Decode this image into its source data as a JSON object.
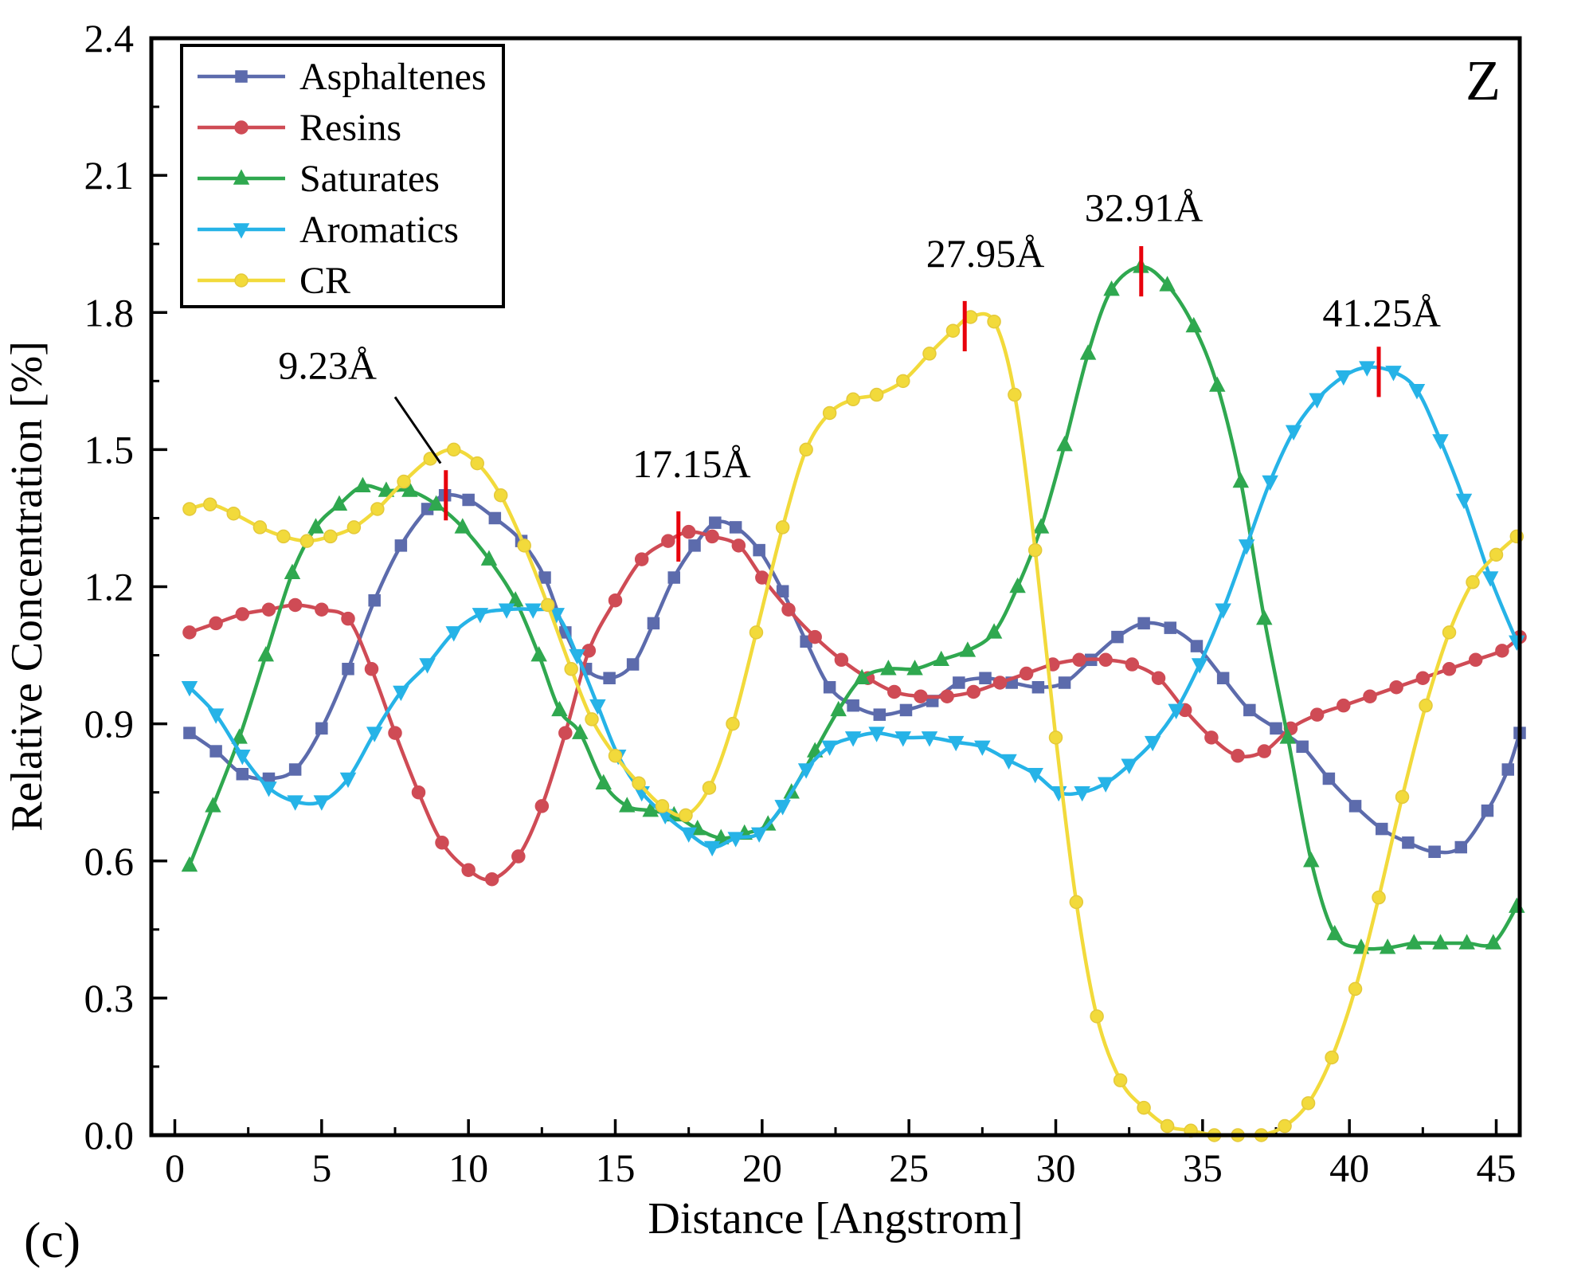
{
  "figure": {
    "panel_label": "(c)",
    "corner_label": "Z"
  },
  "chart_data": {
    "type": "line",
    "title": "",
    "xlabel": "Distance [Angstrom]",
    "ylabel": "Relative Concentration [%]",
    "xlim": [
      -0.8,
      45.8
    ],
    "ylim": [
      0,
      2.4
    ],
    "xticks": [
      0,
      5,
      10,
      15,
      20,
      25,
      30,
      35,
      40,
      45
    ],
    "yticks": [
      0.0,
      0.3,
      0.6,
      0.9,
      1.2,
      1.5,
      1.8,
      2.1,
      2.4
    ],
    "x_minor_step": 2.5,
    "y_minor_step": 0.15,
    "grid": false,
    "legend_position": "top-left",
    "annotation_color": "#e8000b",
    "series": [
      {
        "name": "Asphaltenes",
        "color": "#5c6bac",
        "marker": "square",
        "points": [
          [
            0.5,
            0.88
          ],
          [
            1.4,
            0.84
          ],
          [
            2.3,
            0.79
          ],
          [
            3.2,
            0.78
          ],
          [
            4.1,
            0.8
          ],
          [
            5.0,
            0.89
          ],
          [
            5.9,
            1.02
          ],
          [
            6.8,
            1.17
          ],
          [
            7.7,
            1.29
          ],
          [
            8.6,
            1.37
          ],
          [
            9.2,
            1.4
          ],
          [
            10.0,
            1.39
          ],
          [
            10.9,
            1.35
          ],
          [
            11.8,
            1.3
          ],
          [
            12.6,
            1.22
          ],
          [
            13.3,
            1.1
          ],
          [
            14.0,
            1.02
          ],
          [
            14.8,
            1.0
          ],
          [
            15.6,
            1.03
          ],
          [
            16.3,
            1.12
          ],
          [
            17.0,
            1.22
          ],
          [
            17.7,
            1.29
          ],
          [
            18.4,
            1.34
          ],
          [
            19.1,
            1.33
          ],
          [
            19.9,
            1.28
          ],
          [
            20.7,
            1.19
          ],
          [
            21.5,
            1.08
          ],
          [
            22.3,
            0.98
          ],
          [
            23.1,
            0.94
          ],
          [
            24.0,
            0.92
          ],
          [
            24.9,
            0.93
          ],
          [
            25.8,
            0.95
          ],
          [
            26.7,
            0.99
          ],
          [
            27.6,
            1.0
          ],
          [
            28.5,
            0.99
          ],
          [
            29.4,
            0.98
          ],
          [
            30.3,
            0.99
          ],
          [
            31.2,
            1.04
          ],
          [
            32.1,
            1.09
          ],
          [
            33.0,
            1.12
          ],
          [
            33.9,
            1.11
          ],
          [
            34.8,
            1.07
          ],
          [
            35.7,
            1.0
          ],
          [
            36.6,
            0.93
          ],
          [
            37.5,
            0.89
          ],
          [
            38.4,
            0.85
          ],
          [
            39.3,
            0.78
          ],
          [
            40.2,
            0.72
          ],
          [
            41.1,
            0.67
          ],
          [
            42.0,
            0.64
          ],
          [
            42.9,
            0.62
          ],
          [
            43.8,
            0.63
          ],
          [
            44.7,
            0.71
          ],
          [
            45.4,
            0.8
          ],
          [
            45.8,
            0.88
          ]
        ]
      },
      {
        "name": "Resins",
        "color": "#cf4b55",
        "marker": "circle",
        "points": [
          [
            0.5,
            1.1
          ],
          [
            1.4,
            1.12
          ],
          [
            2.3,
            1.14
          ],
          [
            3.2,
            1.15
          ],
          [
            4.1,
            1.16
          ],
          [
            5.0,
            1.15
          ],
          [
            5.9,
            1.13
          ],
          [
            6.7,
            1.02
          ],
          [
            7.5,
            0.88
          ],
          [
            8.3,
            0.75
          ],
          [
            9.1,
            0.64
          ],
          [
            10.0,
            0.58
          ],
          [
            10.8,
            0.56
          ],
          [
            11.7,
            0.61
          ],
          [
            12.5,
            0.72
          ],
          [
            13.3,
            0.88
          ],
          [
            14.1,
            1.06
          ],
          [
            15.0,
            1.17
          ],
          [
            15.9,
            1.26
          ],
          [
            16.8,
            1.3
          ],
          [
            17.5,
            1.32
          ],
          [
            18.3,
            1.31
          ],
          [
            19.2,
            1.29
          ],
          [
            20.0,
            1.22
          ],
          [
            20.9,
            1.15
          ],
          [
            21.8,
            1.09
          ],
          [
            22.7,
            1.04
          ],
          [
            23.6,
            1.0
          ],
          [
            24.5,
            0.97
          ],
          [
            25.4,
            0.96
          ],
          [
            26.3,
            0.96
          ],
          [
            27.2,
            0.97
          ],
          [
            28.1,
            0.99
          ],
          [
            29.0,
            1.01
          ],
          [
            29.9,
            1.03
          ],
          [
            30.8,
            1.04
          ],
          [
            31.7,
            1.04
          ],
          [
            32.6,
            1.03
          ],
          [
            33.5,
            1.0
          ],
          [
            34.4,
            0.93
          ],
          [
            35.3,
            0.87
          ],
          [
            36.2,
            0.83
          ],
          [
            37.1,
            0.84
          ],
          [
            38.0,
            0.89
          ],
          [
            38.9,
            0.92
          ],
          [
            39.8,
            0.94
          ],
          [
            40.7,
            0.96
          ],
          [
            41.6,
            0.98
          ],
          [
            42.5,
            1.0
          ],
          [
            43.4,
            1.02
          ],
          [
            44.3,
            1.04
          ],
          [
            45.2,
            1.06
          ],
          [
            45.8,
            1.09
          ]
        ]
      },
      {
        "name": "Saturates",
        "color": "#2fa84f",
        "marker": "triangle-up",
        "points": [
          [
            0.5,
            0.59
          ],
          [
            1.3,
            0.72
          ],
          [
            2.2,
            0.87
          ],
          [
            3.1,
            1.05
          ],
          [
            4.0,
            1.23
          ],
          [
            4.8,
            1.33
          ],
          [
            5.6,
            1.38
          ],
          [
            6.4,
            1.42
          ],
          [
            7.2,
            1.41
          ],
          [
            8.0,
            1.41
          ],
          [
            8.9,
            1.38
          ],
          [
            9.8,
            1.33
          ],
          [
            10.7,
            1.26
          ],
          [
            11.6,
            1.17
          ],
          [
            12.4,
            1.05
          ],
          [
            13.1,
            0.93
          ],
          [
            13.8,
            0.88
          ],
          [
            14.6,
            0.77
          ],
          [
            15.4,
            0.72
          ],
          [
            16.2,
            0.71
          ],
          [
            17.0,
            0.7
          ],
          [
            17.8,
            0.67
          ],
          [
            18.6,
            0.65
          ],
          [
            19.4,
            0.66
          ],
          [
            20.2,
            0.68
          ],
          [
            21.0,
            0.75
          ],
          [
            21.8,
            0.84
          ],
          [
            22.6,
            0.93
          ],
          [
            23.4,
            1.0
          ],
          [
            24.3,
            1.02
          ],
          [
            25.2,
            1.02
          ],
          [
            26.1,
            1.04
          ],
          [
            27.0,
            1.06
          ],
          [
            27.9,
            1.1
          ],
          [
            28.7,
            1.2
          ],
          [
            29.5,
            1.33
          ],
          [
            30.3,
            1.51
          ],
          [
            31.1,
            1.71
          ],
          [
            31.9,
            1.85
          ],
          [
            32.9,
            1.9
          ],
          [
            33.8,
            1.86
          ],
          [
            34.7,
            1.77
          ],
          [
            35.5,
            1.64
          ],
          [
            36.3,
            1.43
          ],
          [
            37.1,
            1.13
          ],
          [
            37.9,
            0.87
          ],
          [
            38.7,
            0.6
          ],
          [
            39.5,
            0.44
          ],
          [
            40.4,
            0.41
          ],
          [
            41.3,
            0.41
          ],
          [
            42.2,
            0.42
          ],
          [
            43.1,
            0.42
          ],
          [
            44.0,
            0.42
          ],
          [
            44.9,
            0.42
          ],
          [
            45.7,
            0.5
          ]
        ]
      },
      {
        "name": "Aromatics",
        "color": "#26b3e7",
        "marker": "triangle-down",
        "points": [
          [
            0.5,
            0.98
          ],
          [
            1.4,
            0.92
          ],
          [
            2.3,
            0.83
          ],
          [
            3.2,
            0.76
          ],
          [
            4.1,
            0.73
          ],
          [
            5.0,
            0.73
          ],
          [
            5.9,
            0.78
          ],
          [
            6.8,
            0.88
          ],
          [
            7.7,
            0.97
          ],
          [
            8.6,
            1.03
          ],
          [
            9.5,
            1.1
          ],
          [
            10.4,
            1.14
          ],
          [
            11.3,
            1.15
          ],
          [
            12.2,
            1.15
          ],
          [
            13.0,
            1.14
          ],
          [
            13.7,
            1.05
          ],
          [
            14.4,
            0.94
          ],
          [
            15.1,
            0.83
          ],
          [
            15.9,
            0.75
          ],
          [
            16.7,
            0.7
          ],
          [
            17.5,
            0.66
          ],
          [
            18.3,
            0.63
          ],
          [
            19.1,
            0.65
          ],
          [
            19.9,
            0.66
          ],
          [
            20.7,
            0.72
          ],
          [
            21.5,
            0.8
          ],
          [
            22.3,
            0.85
          ],
          [
            23.1,
            0.87
          ],
          [
            23.9,
            0.88
          ],
          [
            24.8,
            0.87
          ],
          [
            25.7,
            0.87
          ],
          [
            26.6,
            0.86
          ],
          [
            27.5,
            0.85
          ],
          [
            28.4,
            0.82
          ],
          [
            29.3,
            0.79
          ],
          [
            30.1,
            0.75
          ],
          [
            30.9,
            0.75
          ],
          [
            31.7,
            0.77
          ],
          [
            32.5,
            0.81
          ],
          [
            33.3,
            0.86
          ],
          [
            34.1,
            0.93
          ],
          [
            34.9,
            1.03
          ],
          [
            35.7,
            1.15
          ],
          [
            36.5,
            1.29
          ],
          [
            37.3,
            1.43
          ],
          [
            38.1,
            1.54
          ],
          [
            38.9,
            1.61
          ],
          [
            39.8,
            1.66
          ],
          [
            40.6,
            1.68
          ],
          [
            41.5,
            1.67
          ],
          [
            42.3,
            1.63
          ],
          [
            43.1,
            1.52
          ],
          [
            43.9,
            1.39
          ],
          [
            44.8,
            1.22
          ],
          [
            45.7,
            1.08
          ]
        ]
      },
      {
        "name": "CR",
        "color": "#f2da3b",
        "edge": "#e4c93a",
        "marker": "circle",
        "points": [
          [
            0.5,
            1.37
          ],
          [
            1.2,
            1.38
          ],
          [
            2.0,
            1.36
          ],
          [
            2.9,
            1.33
          ],
          [
            3.7,
            1.31
          ],
          [
            4.5,
            1.3
          ],
          [
            5.3,
            1.31
          ],
          [
            6.1,
            1.33
          ],
          [
            6.9,
            1.37
          ],
          [
            7.8,
            1.43
          ],
          [
            8.7,
            1.48
          ],
          [
            9.5,
            1.5
          ],
          [
            10.3,
            1.47
          ],
          [
            11.1,
            1.4
          ],
          [
            11.9,
            1.29
          ],
          [
            12.7,
            1.16
          ],
          [
            13.5,
            1.02
          ],
          [
            14.2,
            0.91
          ],
          [
            15.0,
            0.83
          ],
          [
            15.8,
            0.77
          ],
          [
            16.6,
            0.72
          ],
          [
            17.4,
            0.7
          ],
          [
            18.2,
            0.76
          ],
          [
            19.0,
            0.9
          ],
          [
            19.8,
            1.1
          ],
          [
            20.7,
            1.33
          ],
          [
            21.5,
            1.5
          ],
          [
            22.3,
            1.58
          ],
          [
            23.1,
            1.61
          ],
          [
            23.9,
            1.62
          ],
          [
            24.8,
            1.65
          ],
          [
            25.7,
            1.71
          ],
          [
            26.5,
            1.76
          ],
          [
            27.1,
            1.79
          ],
          [
            27.9,
            1.78
          ],
          [
            28.6,
            1.62
          ],
          [
            29.3,
            1.28
          ],
          [
            30.0,
            0.87
          ],
          [
            30.7,
            0.51
          ],
          [
            31.4,
            0.26
          ],
          [
            32.2,
            0.12
          ],
          [
            33.0,
            0.06
          ],
          [
            33.8,
            0.02
          ],
          [
            34.6,
            0.01
          ],
          [
            35.4,
            0.0
          ],
          [
            36.2,
            0.0
          ],
          [
            37.0,
            0.0
          ],
          [
            37.8,
            0.02
          ],
          [
            38.6,
            0.07
          ],
          [
            39.4,
            0.17
          ],
          [
            40.2,
            0.32
          ],
          [
            41.0,
            0.52
          ],
          [
            41.8,
            0.74
          ],
          [
            42.6,
            0.94
          ],
          [
            43.4,
            1.1
          ],
          [
            44.2,
            1.21
          ],
          [
            45.0,
            1.27
          ],
          [
            45.7,
            1.31
          ]
        ]
      }
    ],
    "annotations": [
      {
        "label": "9.23Å",
        "x": 9.23,
        "y": 1.4,
        "label_x": 5.2,
        "label_y": 1.655,
        "connector": [
          [
            7.5,
            1.615
          ],
          [
            9.05,
            1.47
          ]
        ]
      },
      {
        "label": "17.15Å",
        "x": 17.15,
        "y": 1.31,
        "label_x": 17.6,
        "label_y": 1.44
      },
      {
        "label": "27.95Å",
        "x": 26.9,
        "y": 1.77,
        "label_x": 27.6,
        "label_y": 1.9
      },
      {
        "label": "32.91Å",
        "x": 32.91,
        "y": 1.89,
        "label_x": 33.0,
        "label_y": 2.0
      },
      {
        "label": "41.25Å",
        "x": 41.0,
        "y": 1.67,
        "label_x": 41.1,
        "label_y": 1.77
      }
    ]
  }
}
